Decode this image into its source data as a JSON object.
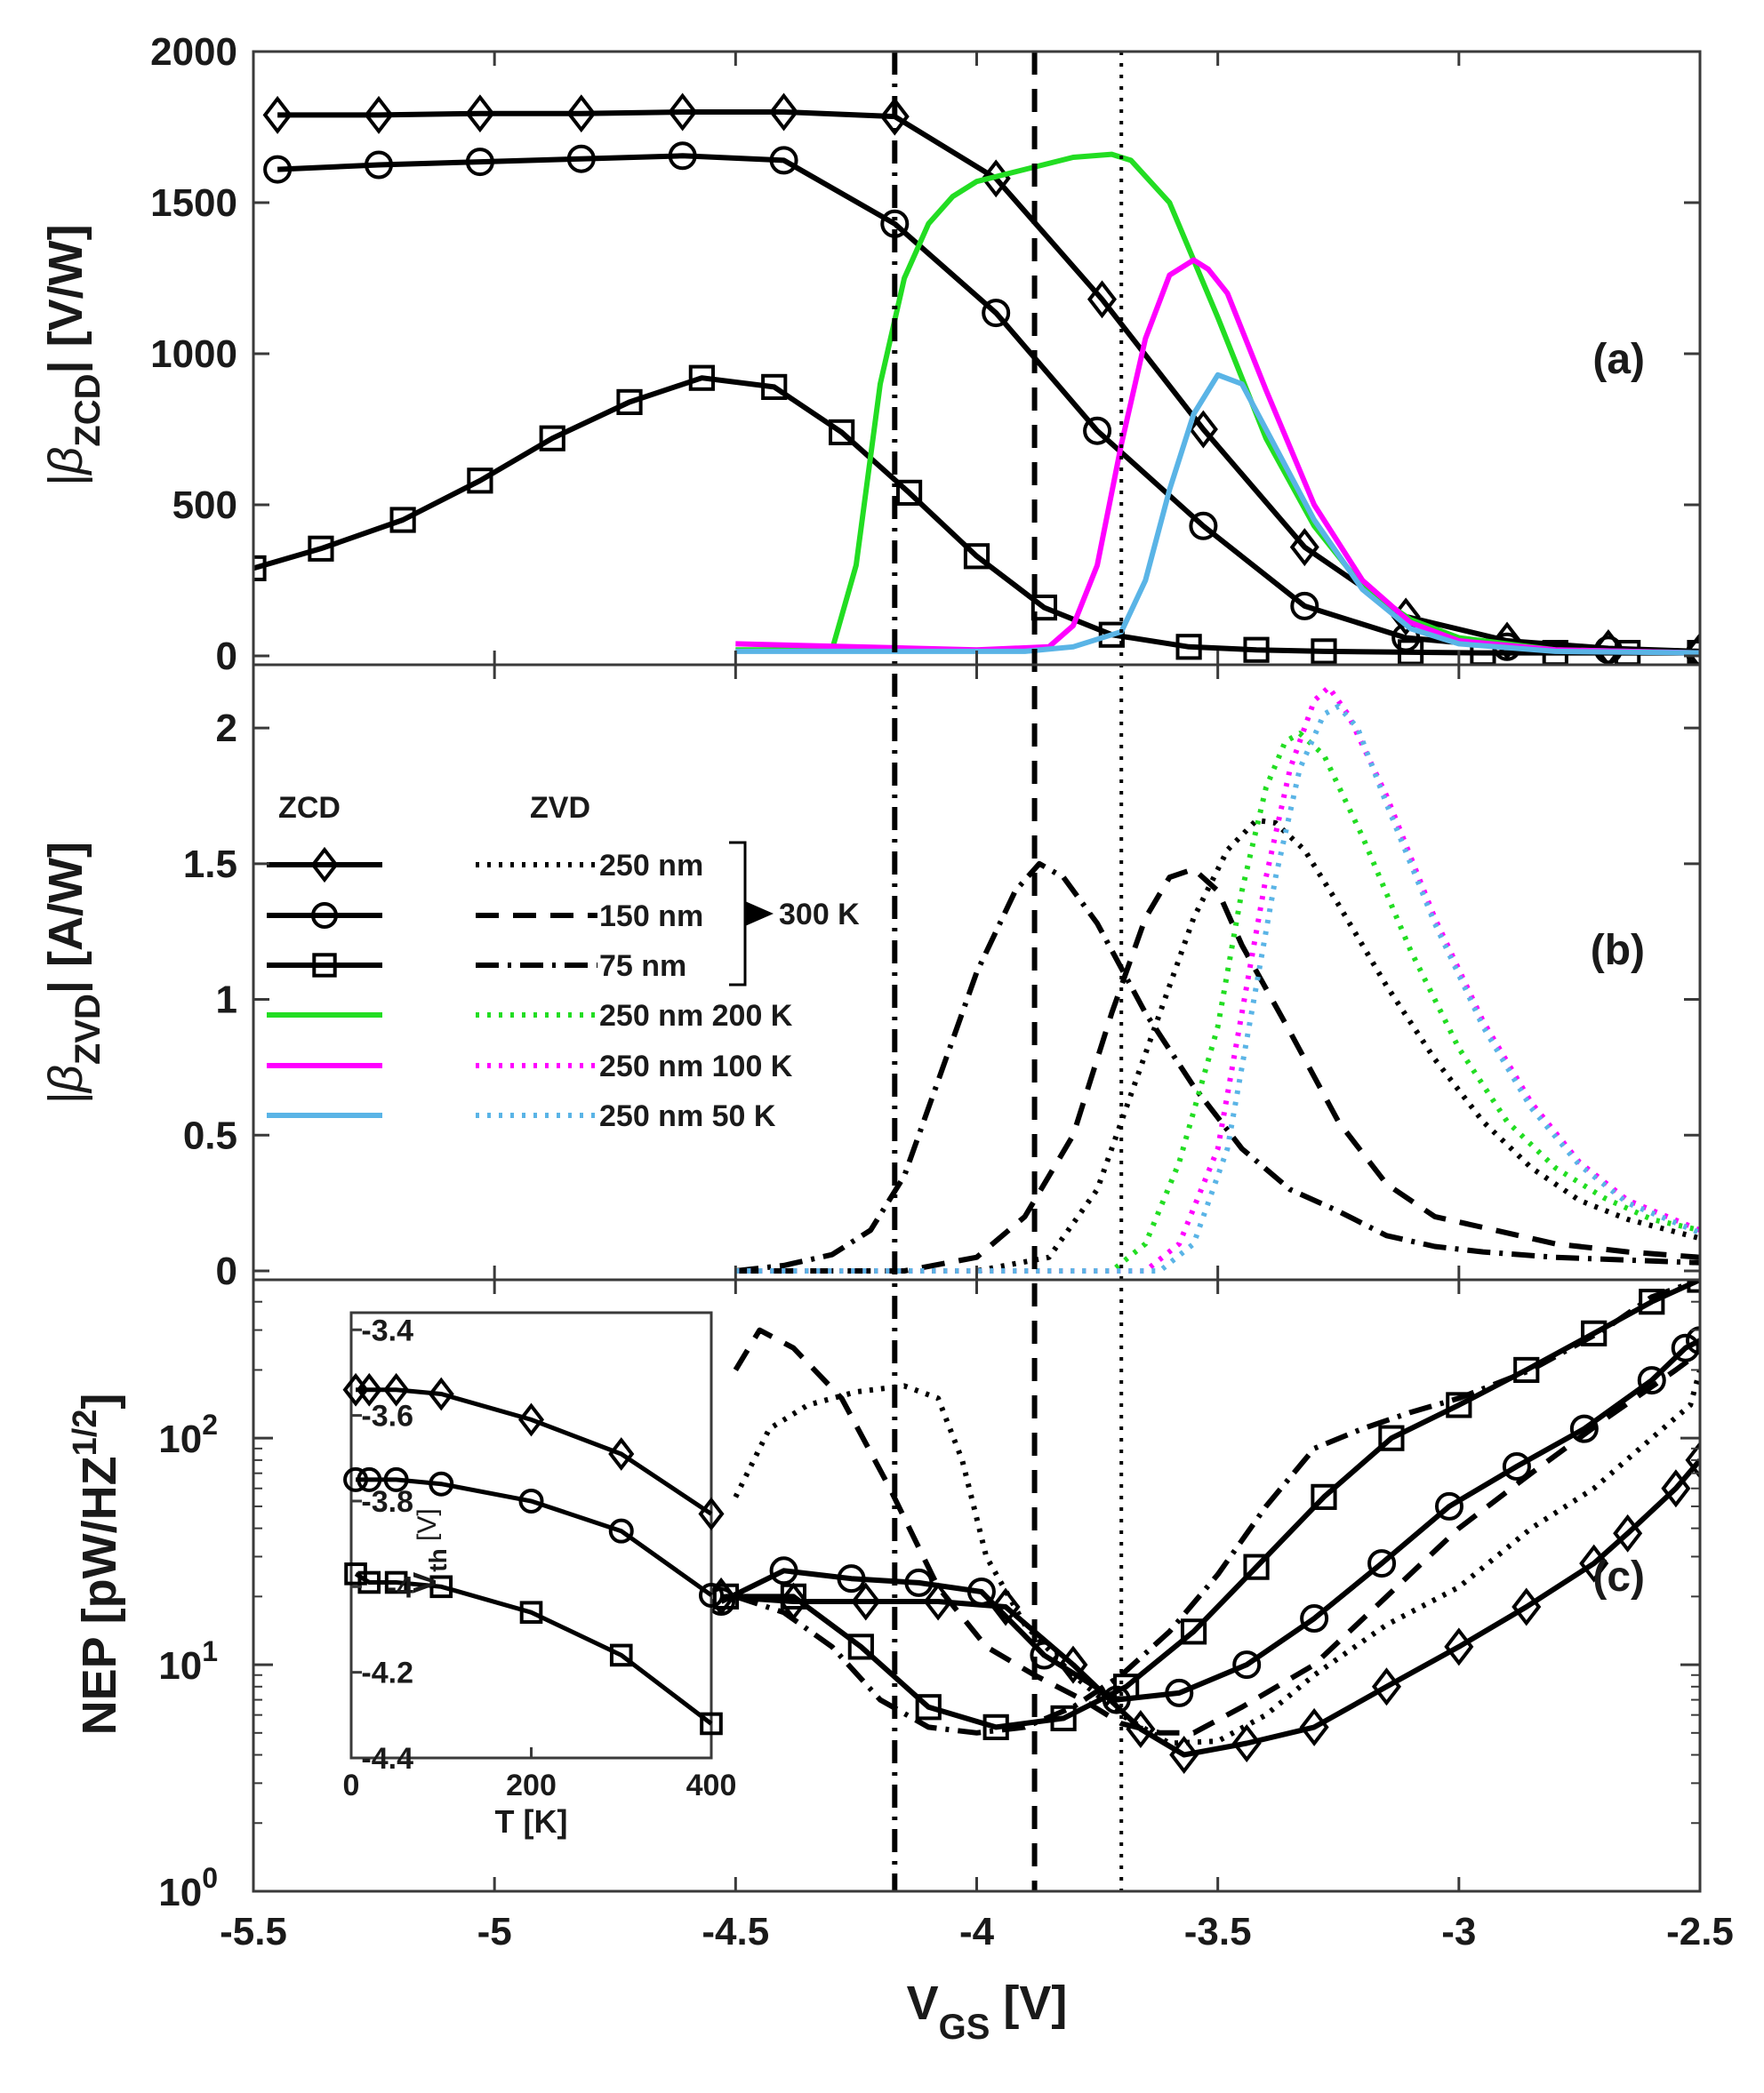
{
  "chart_data": [
    {
      "panel": "a",
      "type": "line",
      "panel_label": "(a)",
      "ylabel_main": "|β",
      "ylabel_sub": "ZCD",
      "ylabel_tail": "| [V/W]",
      "xlim": [
        -5.5,
        -2.5
      ],
      "ylim": [
        0,
        2000
      ],
      "yticks": [
        "0",
        "500",
        "1000",
        "1500",
        "2000"
      ],
      "series": [
        {
          "name": "ZCD 250 nm 300 K",
          "color": "#000000",
          "dash": "solid",
          "marker": "diamond",
          "x": [
            -5.45,
            -5.24,
            -5.03,
            -4.82,
            -4.61,
            -4.4,
            -4.17,
            -3.96,
            -3.74,
            -3.53,
            -3.32,
            -3.11,
            -2.9,
            -2.69,
            -2.5
          ],
          "y": [
            1790,
            1790,
            1795,
            1795,
            1800,
            1800,
            1785,
            1580,
            1180,
            750,
            360,
            130,
            50,
            25,
            15
          ]
        },
        {
          "name": "ZCD 150 nm 300 K",
          "color": "#000000",
          "dash": "solid",
          "marker": "circle",
          "x": [
            -5.45,
            -5.24,
            -5.03,
            -4.82,
            -4.61,
            -4.4,
            -4.17,
            -3.96,
            -3.75,
            -3.53,
            -3.32,
            -3.11,
            -2.9,
            -2.69,
            -2.5
          ],
          "y": [
            1610,
            1625,
            1635,
            1645,
            1655,
            1640,
            1430,
            1135,
            745,
            430,
            165,
            60,
            30,
            20,
            10
          ]
        },
        {
          "name": "ZCD 75 nm 300 K",
          "color": "#000000",
          "dash": "solid",
          "marker": "square",
          "x": [
            -5.5,
            -5.36,
            -5.19,
            -5.03,
            -4.88,
            -4.72,
            -4.57,
            -4.42,
            -4.28,
            -4.14,
            -4.0,
            -3.86,
            -3.72,
            -3.56,
            -3.42,
            -3.28,
            -3.1,
            -2.95,
            -2.8,
            -2.65,
            -2.5
          ],
          "y": [
            290,
            355,
            450,
            580,
            720,
            840,
            920,
            890,
            740,
            540,
            330,
            160,
            70,
            30,
            20,
            15,
            12,
            10,
            10,
            10,
            10
          ]
        },
        {
          "name": "ZCD 250 nm 200 K",
          "color": "#22dd22",
          "dash": "solid",
          "marker": "none",
          "x": [
            -4.5,
            -4.3,
            -4.25,
            -4.2,
            -4.15,
            -4.1,
            -4.05,
            -4.0,
            -3.9,
            -3.8,
            -3.72,
            -3.68,
            -3.6,
            -3.5,
            -3.4,
            -3.3,
            -3.2,
            -3.1,
            -3.0,
            -2.8,
            -2.5
          ],
          "y": [
            20,
            20,
            300,
            900,
            1250,
            1430,
            1520,
            1570,
            1610,
            1650,
            1660,
            1640,
            1500,
            1120,
            720,
            430,
            230,
            120,
            60,
            20,
            10
          ]
        },
        {
          "name": "ZCD 250 nm 100 K",
          "color": "#ff00ff",
          "dash": "solid",
          "marker": "none",
          "x": [
            -4.5,
            -4.0,
            -3.85,
            -3.8,
            -3.75,
            -3.7,
            -3.65,
            -3.6,
            -3.55,
            -3.52,
            -3.48,
            -3.4,
            -3.3,
            -3.2,
            -3.1,
            -3.0,
            -2.8,
            -2.5
          ],
          "y": [
            40,
            20,
            30,
            100,
            300,
            700,
            1050,
            1260,
            1310,
            1280,
            1200,
            880,
            500,
            250,
            110,
            50,
            20,
            10
          ]
        },
        {
          "name": "ZCD 250 nm 50 K",
          "color": "#5ab4e6",
          "dash": "solid",
          "marker": "none",
          "x": [
            -4.5,
            -3.9,
            -3.8,
            -3.7,
            -3.65,
            -3.6,
            -3.55,
            -3.5,
            -3.45,
            -3.4,
            -3.3,
            -3.2,
            -3.1,
            -3.0,
            -2.8,
            -2.5
          ],
          "y": [
            15,
            15,
            30,
            80,
            250,
            550,
            800,
            930,
            900,
            750,
            450,
            220,
            90,
            40,
            15,
            10
          ]
        }
      ]
    },
    {
      "panel": "b",
      "type": "line",
      "panel_label": "(b)",
      "ylabel_main": "|β",
      "ylabel_sub": "ZVD",
      "ylabel_tail": "| [A/W]",
      "xlim": [
        -5.5,
        -2.5
      ],
      "ylim": [
        0,
        2.2
      ],
      "yticks": [
        "0",
        "0.5",
        "1",
        "1.5",
        "2"
      ],
      "series": [
        {
          "name": "ZVD 250 nm 300 K",
          "color": "#000000",
          "dash": "dot",
          "x": [
            -4.5,
            -4.0,
            -3.85,
            -3.75,
            -3.65,
            -3.55,
            -3.48,
            -3.42,
            -3.38,
            -3.32,
            -3.25,
            -3.15,
            -3.05,
            -2.95,
            -2.85,
            -2.75,
            -2.65,
            -2.5
          ],
          "y": [
            0,
            0,
            0.05,
            0.3,
            0.8,
            1.3,
            1.55,
            1.66,
            1.65,
            1.55,
            1.35,
            1.05,
            0.78,
            0.55,
            0.38,
            0.26,
            0.19,
            0.12
          ]
        },
        {
          "name": "ZVD 150 nm 300 K",
          "color": "#000000",
          "dash": "dash",
          "x": [
            -4.5,
            -4.15,
            -4.0,
            -3.9,
            -3.8,
            -3.72,
            -3.65,
            -3.6,
            -3.55,
            -3.5,
            -3.45,
            -3.35,
            -3.25,
            -3.15,
            -3.05,
            -2.95,
            -2.8,
            -2.65,
            -2.5
          ],
          "y": [
            0,
            0,
            0.05,
            0.2,
            0.5,
            0.95,
            1.3,
            1.45,
            1.48,
            1.4,
            1.2,
            0.88,
            0.55,
            0.32,
            0.2,
            0.16,
            0.1,
            0.07,
            0.05
          ]
        },
        {
          "name": "ZVD 75 nm 300 K",
          "color": "#000000",
          "dash": "dashdot",
          "x": [
            -4.5,
            -4.4,
            -4.3,
            -4.22,
            -4.15,
            -4.08,
            -4.0,
            -3.92,
            -3.87,
            -3.82,
            -3.75,
            -3.65,
            -3.55,
            -3.45,
            -3.35,
            -3.25,
            -3.15,
            -3.05,
            -2.95,
            -2.8,
            -2.65,
            -2.5
          ],
          "y": [
            0,
            0.02,
            0.06,
            0.15,
            0.35,
            0.7,
            1.1,
            1.4,
            1.5,
            1.45,
            1.28,
            0.95,
            0.68,
            0.45,
            0.3,
            0.22,
            0.13,
            0.09,
            0.07,
            0.05,
            0.04,
            0.03
          ]
        },
        {
          "name": "ZVD 250 nm 200 K",
          "color": "#22dd22",
          "dash": "dot",
          "x": [
            -4.5,
            -3.72,
            -3.65,
            -3.58,
            -3.5,
            -3.45,
            -3.4,
            -3.36,
            -3.33,
            -3.28,
            -3.2,
            -3.1,
            -3.0,
            -2.9,
            -2.8,
            -2.7,
            -2.6,
            -2.5
          ],
          "y": [
            0,
            0,
            0.1,
            0.4,
            0.9,
            1.4,
            1.78,
            1.95,
            1.98,
            1.9,
            1.6,
            1.18,
            0.82,
            0.55,
            0.38,
            0.27,
            0.19,
            0.15
          ]
        },
        {
          "name": "ZVD 250 nm 100 K",
          "color": "#ff00ff",
          "dash": "dot",
          "x": [
            -4.5,
            -3.65,
            -3.58,
            -3.5,
            -3.45,
            -3.4,
            -3.35,
            -3.3,
            -3.27,
            -3.23,
            -3.15,
            -3.05,
            -2.95,
            -2.85,
            -2.75,
            -2.65,
            -2.5
          ],
          "y": [
            0,
            0,
            0.1,
            0.45,
            0.95,
            1.45,
            1.85,
            2.1,
            2.15,
            2.05,
            1.75,
            1.3,
            0.92,
            0.62,
            0.4,
            0.26,
            0.15
          ]
        },
        {
          "name": "ZVD 250 nm 50 K",
          "color": "#5ab4e6",
          "dash": "dot",
          "x": [
            -4.5,
            -3.62,
            -3.55,
            -3.48,
            -3.43,
            -3.38,
            -3.33,
            -3.28,
            -3.25,
            -3.21,
            -3.15,
            -3.05,
            -2.95,
            -2.85,
            -2.75,
            -2.65,
            -2.5
          ],
          "y": [
            0,
            0,
            0.1,
            0.45,
            0.95,
            1.45,
            1.85,
            2.05,
            2.08,
            2.0,
            1.72,
            1.28,
            0.9,
            0.6,
            0.39,
            0.25,
            0.14
          ]
        }
      ],
      "legend": {
        "position": "left",
        "header_zcd": "ZCD",
        "header_zvd": "ZVD",
        "zvd_labels": [
          "250 nm",
          "150 nm",
          "75 nm",
          "250 nm 200 K",
          "250 nm 100 K",
          "250 nm 50 K"
        ],
        "bracket_label": "300 K"
      }
    },
    {
      "panel": "c",
      "type": "line",
      "panel_label": "(c)",
      "ylabel": "NEP [pW/HZ",
      "ylabel_sup": "1/2",
      "ylabel_tail": "]",
      "yscale": "log",
      "xlim": [
        -5.5,
        -2.5
      ],
      "ylim": [
        1,
        500
      ],
      "yticks": [
        {
          "base": "10",
          "exp": "0",
          "value": 1
        },
        {
          "base": "10",
          "exp": "1",
          "value": 10
        },
        {
          "base": "10",
          "exp": "2",
          "value": 100
        }
      ],
      "series": [
        {
          "name": "ZCD 250 nm 300 K",
          "color": "#000000",
          "dash": "solid",
          "marker": "diamond",
          "x": [
            -4.53,
            -4.38,
            -4.23,
            -4.08,
            -3.94,
            -3.8,
            -3.66,
            -3.57,
            -3.44,
            -3.3,
            -3.15,
            -3.0,
            -2.86,
            -2.72,
            -2.65,
            -2.55,
            -2.5
          ],
          "y": [
            20,
            19,
            19,
            19,
            18,
            10,
            5.2,
            4.0,
            4.5,
            5.3,
            8,
            12,
            18,
            28,
            38,
            60,
            80
          ]
        },
        {
          "name": "ZVD 250 nm 300 K",
          "color": "#000000",
          "dash": "dot",
          "marker": "none",
          "x": [
            -4.5,
            -4.43,
            -4.35,
            -4.25,
            -4.15,
            -4.08,
            -4.03,
            -3.98,
            -3.9,
            -3.8,
            -3.7,
            -3.6,
            -3.5,
            -3.4,
            -3.3,
            -3.15,
            -3.0,
            -2.85,
            -2.72,
            -2.6,
            -2.52,
            -2.5
          ],
          "y": [
            55,
            110,
            140,
            160,
            170,
            150,
            80,
            30,
            15,
            9,
            6,
            4.5,
            4.6,
            6,
            9,
            15,
            22,
            40,
            60,
            100,
            140,
            200
          ]
        },
        {
          "name": "ZCD 150 nm 300 K",
          "color": "#000000",
          "dash": "solid",
          "marker": "circle",
          "x": [
            -4.53,
            -4.4,
            -4.26,
            -4.12,
            -3.99,
            -3.86,
            -3.71,
            -3.58,
            -3.44,
            -3.3,
            -3.16,
            -3.02,
            -2.88,
            -2.74,
            -2.6,
            -2.53,
            -2.5
          ],
          "y": [
            19,
            26,
            24,
            23,
            21,
            11,
            7.0,
            7.5,
            10,
            16,
            28,
            50,
            75,
            110,
            180,
            250,
            270
          ]
        },
        {
          "name": "ZVD 150 nm 300 K",
          "color": "#000000",
          "dash": "dash",
          "marker": "none",
          "x": [
            -4.5,
            -4.45,
            -4.38,
            -4.28,
            -4.18,
            -4.08,
            -3.98,
            -3.88,
            -3.78,
            -3.7,
            -3.62,
            -3.55,
            -3.45,
            -3.3,
            -3.15,
            -3.0,
            -2.85,
            -2.7,
            -2.55,
            -2.5
          ],
          "y": [
            200,
            300,
            250,
            150,
            60,
            22,
            12,
            9,
            7,
            5.5,
            5,
            5,
            6.5,
            10,
            20,
            40,
            70,
            120,
            200,
            240
          ]
        },
        {
          "name": "ZCD 75 nm 300 K",
          "color": "#000000",
          "dash": "solid",
          "marker": "square",
          "x": [
            -4.52,
            -4.38,
            -4.24,
            -4.1,
            -3.96,
            -3.82,
            -3.69,
            -3.55,
            -3.42,
            -3.28,
            -3.14,
            -3.0,
            -2.86,
            -2.72,
            -2.6,
            -2.5
          ],
          "y": [
            20,
            20,
            12,
            6.5,
            5.3,
            5.8,
            8,
            14,
            27,
            55,
            100,
            140,
            200,
            290,
            400,
            500
          ]
        },
        {
          "name": "ZVD 75 nm 300 K",
          "color": "#000000",
          "dash": "dashdot",
          "marker": "none",
          "x": [
            -4.5,
            -4.4,
            -4.3,
            -4.2,
            -4.1,
            -4.0,
            -3.9,
            -3.8,
            -3.7,
            -3.6,
            -3.5,
            -3.4,
            -3.3,
            -3.2,
            -3.1,
            -3.0,
            -2.85,
            -2.7,
            -2.6,
            -2.5
          ],
          "y": [
            20,
            17,
            12,
            7,
            5.3,
            5,
            5.3,
            6.5,
            9,
            14,
            25,
            50,
            90,
            110,
            130,
            150,
            200,
            300,
            420,
            500
          ]
        }
      ],
      "inset": {
        "xlabel": "T [K]",
        "ylabel_main": "V",
        "ylabel_sub": "th",
        "ylabel_tail": " [V]",
        "xlim": [
          0,
          400
        ],
        "ylim": [
          -4.4,
          -3.36
        ],
        "xticks": [
          "0",
          "200",
          "400"
        ],
        "yticks": [
          "-3.4",
          "-3.6",
          "-3.8",
          "-4",
          "-4.2",
          "-4.4"
        ],
        "series": [
          {
            "name": "250 nm",
            "marker": "diamond",
            "x": [
              5,
              20,
              50,
              100,
              200,
              300,
              400
            ],
            "y": [
              -3.54,
              -3.54,
              -3.54,
              -3.55,
              -3.61,
              -3.69,
              -3.83
            ]
          },
          {
            "name": "150 nm",
            "marker": "circle",
            "x": [
              5,
              20,
              50,
              100,
              200,
              300,
              400
            ],
            "y": [
              -3.75,
              -3.75,
              -3.75,
              -3.76,
              -3.8,
              -3.87,
              -4.02
            ]
          },
          {
            "name": "75 nm",
            "marker": "square",
            "x": [
              5,
              20,
              50,
              100,
              200,
              300,
              400
            ],
            "y": [
              -3.97,
              -3.99,
              -3.99,
              -4.0,
              -4.06,
              -4.16,
              -4.32
            ]
          }
        ]
      }
    }
  ],
  "shared_x": {
    "label_main": "V",
    "label_sub": "GS",
    "label_tail": " [V]",
    "ticks": [
      "-5.5",
      "-5",
      "-4.5",
      "-4",
      "-3.5",
      "-3",
      "-2.5"
    ]
  },
  "vertical_lines": [
    {
      "x": -4.17,
      "style": "dashdot",
      "length": "75 nm"
    },
    {
      "x": -3.88,
      "style": "dash",
      "length": "150 nm"
    },
    {
      "x": -3.7,
      "style": "dot",
      "length": "250 nm"
    }
  ]
}
